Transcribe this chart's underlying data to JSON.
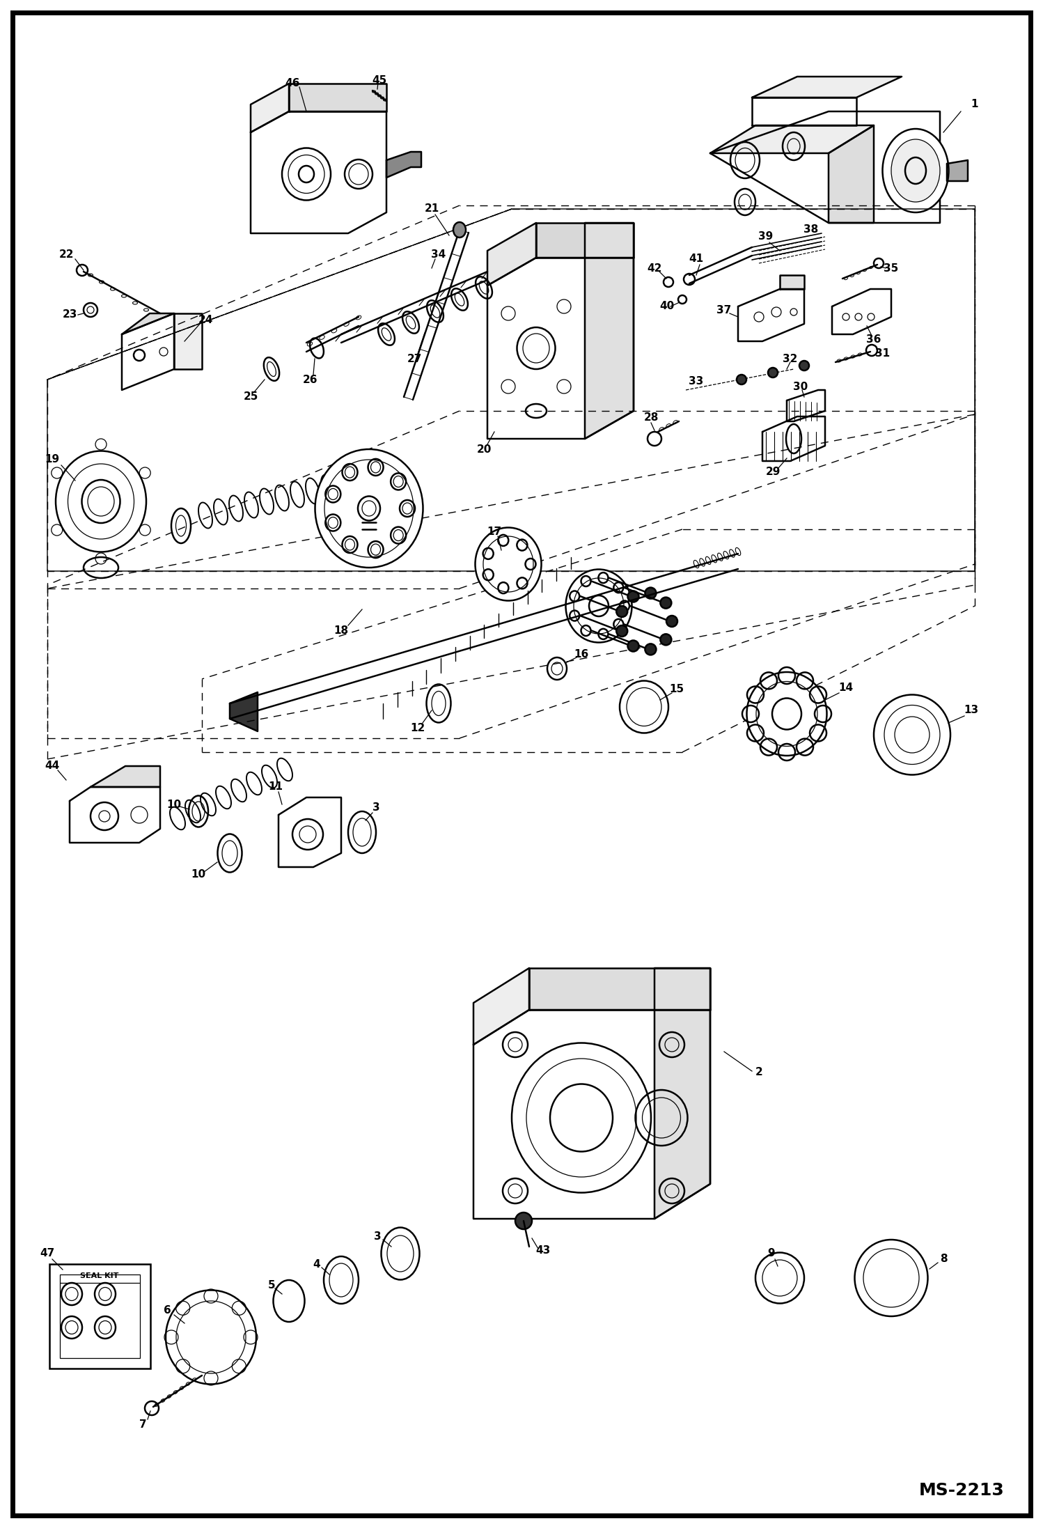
{
  "bg_color": "#ffffff",
  "border_color": "#000000",
  "text_color": "#000000",
  "fig_width": 14.98,
  "fig_height": 21.94,
  "watermark": "MS-2213",
  "lw_main": 1.8,
  "lw_light": 0.9,
  "lw_dash": 1.0,
  "label_fs": 11
}
